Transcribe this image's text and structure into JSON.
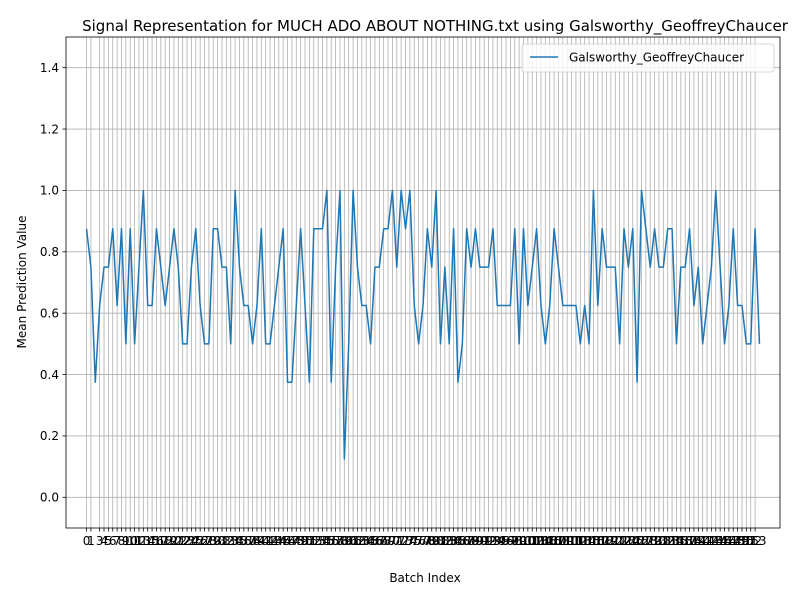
{
  "chart_data": {
    "type": "line",
    "title": "Signal Representation for MUCH ADO ABOUT NOTHING.txt using Galsworthy_GeoffreyChaucer",
    "xlabel": "Batch Index",
    "ylabel": "Mean Prediction Value",
    "ylim": [
      -0.1,
      1.5
    ],
    "xlim": [
      -4.7,
      158.7
    ],
    "yticks": [
      0.0,
      0.2,
      0.4,
      0.6,
      0.8,
      1.0,
      1.2,
      1.4
    ],
    "xticks_start": 0,
    "xticks_end": 153,
    "xticks_omit": [
      2
    ],
    "grid": true,
    "legend_position": "top-right",
    "series": [
      {
        "name": "Galsworthy_GeoffreyChaucer",
        "color": "#1f77b4",
        "values": [
          0.875,
          0.75,
          0.375,
          0.625,
          0.75,
          0.75,
          0.875,
          0.625,
          0.875,
          0.5,
          0.875,
          0.5,
          0.75,
          1.0,
          0.625,
          0.625,
          0.875,
          0.75,
          0.625,
          0.75,
          0.875,
          0.75,
          0.5,
          0.5,
          0.75,
          0.875,
          0.625,
          0.5,
          0.5,
          0.875,
          0.875,
          0.75,
          0.75,
          0.5,
          1.0,
          0.75,
          0.625,
          0.625,
          0.5,
          0.625,
          0.875,
          0.5,
          0.5,
          0.625,
          0.75,
          0.875,
          0.375,
          0.375,
          0.625,
          0.875,
          0.625,
          0.375,
          0.875,
          0.875,
          0.875,
          1.0,
          0.375,
          0.75,
          1.0,
          0.125,
          0.5,
          1.0,
          0.75,
          0.625,
          0.625,
          0.5,
          0.75,
          0.75,
          0.875,
          0.875,
          1.0,
          0.75,
          1.0,
          0.875,
          1.0,
          0.625,
          0.5,
          0.625,
          0.875,
          0.75,
          1.0,
          0.5,
          0.75,
          0.5,
          0.875,
          0.375,
          0.5,
          0.875,
          0.75,
          0.875,
          0.75,
          0.75,
          0.75,
          0.875,
          0.625,
          0.625,
          0.625,
          0.625,
          0.875,
          0.5,
          0.875,
          0.625,
          0.75,
          0.875,
          0.625,
          0.5,
          0.625,
          0.875,
          0.75,
          0.625,
          0.625,
          0.625,
          0.625,
          0.5,
          0.625,
          0.5,
          1.0,
          0.625,
          0.875,
          0.75,
          0.75,
          0.75,
          0.5,
          0.875,
          0.75,
          0.875,
          0.375,
          1.0,
          0.875,
          0.75,
          0.875,
          0.75,
          0.75,
          0.875,
          0.875,
          0.5,
          0.75,
          0.75,
          0.875,
          0.625,
          0.75,
          0.5,
          0.625,
          0.75,
          1.0,
          0.75,
          0.5,
          0.625,
          0.875,
          0.625,
          0.625,
          0.5,
          0.5,
          0.875,
          0.5
        ]
      }
    ]
  }
}
